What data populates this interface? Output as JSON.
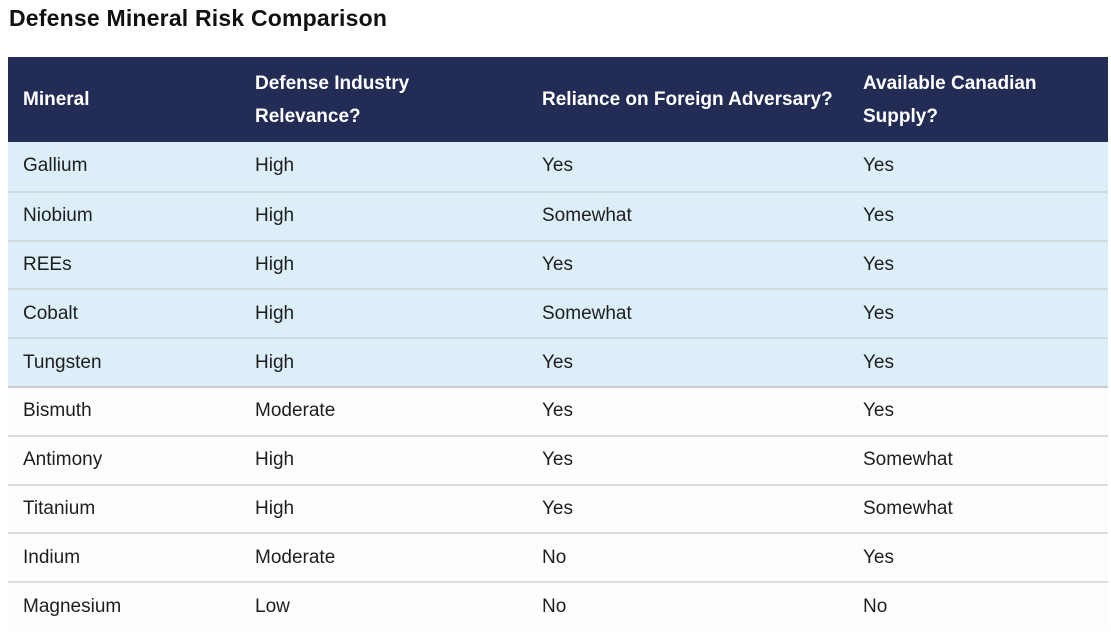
{
  "page": {
    "title": "Defense Mineral Risk Comparison"
  },
  "chart_data": {
    "type": "table",
    "title": "Defense Mineral Risk Comparison",
    "columns": [
      "Mineral",
      "Defense Industry Relevance?",
      "Reliance on Foreign Adversary?",
      "Available Canadian Supply?"
    ],
    "rows": [
      {
        "cells": [
          "Gallium",
          "High",
          "Yes",
          "Yes"
        ],
        "shaded": true
      },
      {
        "cells": [
          "Niobium",
          "High",
          "Somewhat",
          "Yes"
        ],
        "shaded": true
      },
      {
        "cells": [
          "REEs",
          "High",
          "Yes",
          "Yes"
        ],
        "shaded": true
      },
      {
        "cells": [
          "Cobalt",
          "High",
          "Somewhat",
          "Yes"
        ],
        "shaded": true
      },
      {
        "cells": [
          "Tungsten",
          "High",
          "Yes",
          "Yes"
        ],
        "shaded": true
      },
      {
        "cells": [
          "Bismuth",
          "Moderate",
          "Yes",
          "Yes"
        ],
        "shaded": false
      },
      {
        "cells": [
          "Antimony",
          "High",
          "Yes",
          "Somewhat"
        ],
        "shaded": false
      },
      {
        "cells": [
          "Titanium",
          "High",
          "Yes",
          "Somewhat"
        ],
        "shaded": false
      },
      {
        "cells": [
          "Indium",
          "Moderate",
          "No",
          "Yes"
        ],
        "shaded": false
      },
      {
        "cells": [
          "Magnesium",
          "Low",
          "No",
          "No"
        ],
        "shaded": false
      }
    ],
    "layout_hints": {
      "header_style": "dark navy band, white bold text, two-line wrapped headers",
      "row_shading": "first five rows light blue, last five rows white",
      "grid": "horizontal separators only",
      "last_row_clipped_at_bottom": true
    }
  },
  "colors": {
    "header_bg": "#222c55",
    "header_text": "#ffffff",
    "shaded_row_bg": "#dceef8",
    "plain_row_bg": "#fdfdfd",
    "title_text": "#111111",
    "cell_text": "#1e1e1e"
  }
}
